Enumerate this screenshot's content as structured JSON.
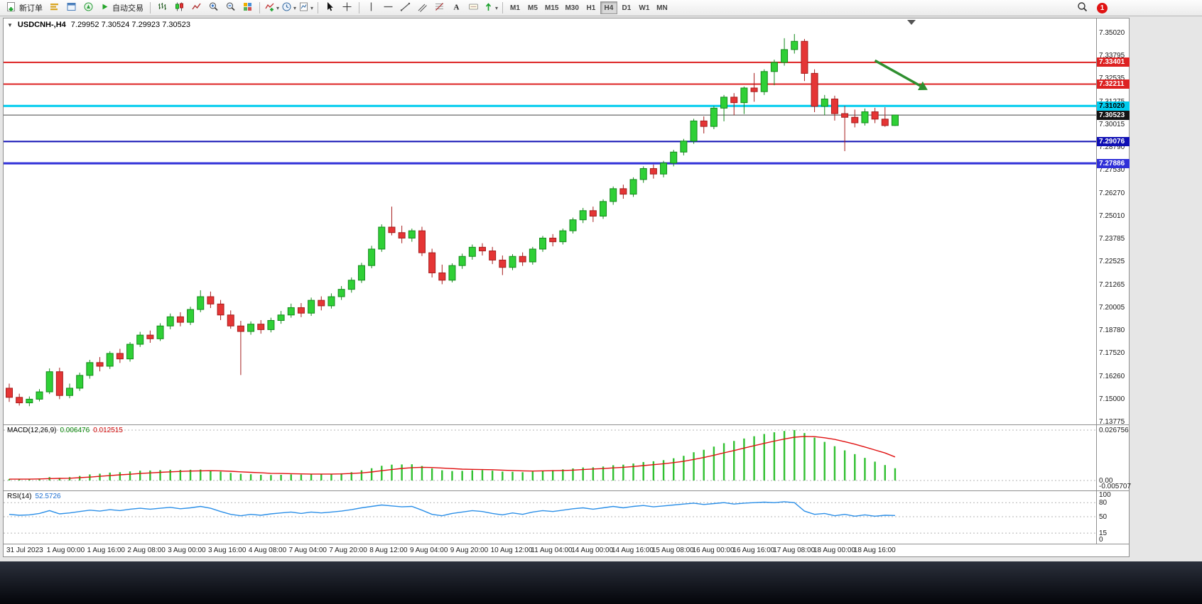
{
  "toolbar": {
    "new_order_label": "新订单",
    "autotrading_label": "自动交易",
    "timeframes": [
      "M1",
      "M5",
      "M15",
      "M30",
      "H1",
      "H4",
      "D1",
      "W1",
      "MN"
    ],
    "active_timeframe": "H4",
    "notification_count": "1",
    "icons": [
      "new-order",
      "market-watch",
      "data-window",
      "navigator",
      "autotrading",
      "bar-chart",
      "candlestick-chart",
      "line-chart",
      "zoom-in",
      "zoom-out",
      "tile-windows",
      "indicators",
      "period",
      "templates",
      "cursor",
      "crosshair",
      "vertical-line",
      "horizontal-line",
      "trendline",
      "channel",
      "fibonacci",
      "text",
      "text-label",
      "arrows",
      "search",
      "notification-badge"
    ]
  },
  "chart_header": {
    "collapse_icon": "▼",
    "symbol_period": "USDCNH-,H4",
    "ohlc": "7.29952 7.30524 7.29923 7.30523"
  },
  "chart_data": {
    "type": "candlestick",
    "symbol": "USDCNH",
    "timeframe": "H4",
    "price_scale": {
      "top": 7.358,
      "bottom": 7.1362
    },
    "price_axis_ticks": [
      "7.35020",
      "7.33795",
      "7.32535",
      "7.31275",
      "7.30015",
      "7.28790",
      "7.27530",
      "7.26270",
      "7.25010",
      "7.23785",
      "7.22525",
      "7.21265",
      "7.20005",
      "7.18780",
      "7.17520",
      "7.16260",
      "7.15000",
      "7.13775"
    ],
    "time_labels": [
      "31 Jul 2023",
      "1 Aug 00:00",
      "1 Aug 16:00",
      "2 Aug 08:00",
      "3 Aug 00:00",
      "3 Aug 16:00",
      "4 Aug 08:00",
      "7 Aug 04:00",
      "7 Aug 20:00",
      "8 Aug 12:00",
      "9 Aug 04:00",
      "9 Aug 20:00",
      "10 Aug 12:00",
      "11 Aug 04:00",
      "14 Aug 00:00",
      "14 Aug 16:00",
      "15 Aug 08:00",
      "16 Aug 00:00",
      "16 Aug 16:00",
      "17 Aug 08:00",
      "18 Aug 00:00",
      "18 Aug 16:00"
    ],
    "colors": {
      "bull": "#2fd036",
      "bull_border": "#148a1c",
      "bear": "#e53535",
      "bear_border": "#a51c1c"
    },
    "candles": [
      [
        7.156,
        7.1585,
        7.1485,
        7.151
      ],
      [
        7.151,
        7.153,
        7.1465,
        7.148
      ],
      [
        7.148,
        7.1515,
        7.1462,
        7.15
      ],
      [
        7.15,
        7.1555,
        7.1488,
        7.154
      ],
      [
        7.154,
        7.1668,
        7.1528,
        7.165
      ],
      [
        7.165,
        7.1672,
        7.15,
        7.152
      ],
      [
        7.152,
        7.1585,
        7.1505,
        7.156
      ],
      [
        7.156,
        7.1645,
        7.1545,
        7.163
      ],
      [
        7.163,
        7.1715,
        7.1612,
        7.17
      ],
      [
        7.17,
        7.173,
        7.1652,
        7.168
      ],
      [
        7.168,
        7.1762,
        7.1665,
        7.175
      ],
      [
        7.175,
        7.1775,
        7.1698,
        7.172
      ],
      [
        7.172,
        7.1812,
        7.1705,
        7.18
      ],
      [
        7.18,
        7.1868,
        7.1785,
        7.185
      ],
      [
        7.185,
        7.1875,
        7.1808,
        7.183
      ],
      [
        7.183,
        7.1915,
        7.1818,
        7.19
      ],
      [
        7.19,
        7.1968,
        7.1882,
        7.195
      ],
      [
        7.195,
        7.1975,
        7.1898,
        7.192
      ],
      [
        7.192,
        7.2005,
        7.1905,
        7.199
      ],
      [
        7.199,
        7.2095,
        7.1975,
        7.206
      ],
      [
        7.206,
        7.2088,
        7.1998,
        7.202
      ],
      [
        7.202,
        7.2042,
        7.1932,
        7.196
      ],
      [
        7.196,
        7.1985,
        7.1885,
        7.19
      ],
      [
        7.19,
        7.1928,
        7.1632,
        7.187
      ],
      [
        7.187,
        7.1925,
        7.1852,
        7.191
      ],
      [
        7.191,
        7.1932,
        7.1858,
        7.188
      ],
      [
        7.188,
        7.1945,
        7.1865,
        7.193
      ],
      [
        7.193,
        7.1982,
        7.1912,
        7.196
      ],
      [
        7.196,
        7.2022,
        7.1945,
        7.2
      ],
      [
        7.2,
        7.2025,
        7.1948,
        7.197
      ],
      [
        7.197,
        7.2055,
        7.1955,
        7.204
      ],
      [
        7.204,
        7.2062,
        7.1985,
        7.201
      ],
      [
        7.201,
        7.2078,
        7.1995,
        7.206
      ],
      [
        7.206,
        7.2118,
        7.2042,
        7.21
      ],
      [
        7.21,
        7.2165,
        7.2082,
        7.215
      ],
      [
        7.215,
        7.2245,
        7.2135,
        7.223
      ],
      [
        7.223,
        7.2338,
        7.2215,
        7.232
      ],
      [
        7.232,
        7.2455,
        7.2305,
        7.244
      ],
      [
        7.244,
        7.2552,
        7.2395,
        7.241
      ],
      [
        7.241,
        7.2448,
        7.2352,
        7.238
      ],
      [
        7.238,
        7.2432,
        7.236,
        7.242
      ],
      [
        7.242,
        7.2442,
        7.2282,
        7.23
      ],
      [
        7.23,
        7.2322,
        7.2165,
        7.219
      ],
      [
        7.219,
        7.2235,
        7.2128,
        7.215
      ],
      [
        7.215,
        7.2242,
        7.2138,
        7.223
      ],
      [
        7.223,
        7.2295,
        7.2212,
        7.228
      ],
      [
        7.228,
        7.2345,
        7.2262,
        7.233
      ],
      [
        7.233,
        7.2352,
        7.2285,
        7.231
      ],
      [
        7.231,
        7.2332,
        7.2238,
        7.226
      ],
      [
        7.226,
        7.2285,
        7.2178,
        7.222
      ],
      [
        7.222,
        7.2292,
        7.2205,
        7.228
      ],
      [
        7.228,
        7.2302,
        7.2228,
        7.225
      ],
      [
        7.225,
        7.2332,
        7.2235,
        7.232
      ],
      [
        7.232,
        7.2392,
        7.2305,
        7.238
      ],
      [
        7.238,
        7.2402,
        7.2335,
        7.236
      ],
      [
        7.236,
        7.2432,
        7.2345,
        7.242
      ],
      [
        7.242,
        7.2492,
        7.2405,
        7.248
      ],
      [
        7.248,
        7.2545,
        7.2462,
        7.253
      ],
      [
        7.253,
        7.2552,
        7.2468,
        7.25
      ],
      [
        7.25,
        7.2592,
        7.2485,
        7.258
      ],
      [
        7.258,
        7.2662,
        7.2562,
        7.265
      ],
      [
        7.265,
        7.2672,
        7.2595,
        7.262
      ],
      [
        7.262,
        7.2712,
        7.2605,
        7.27
      ],
      [
        7.27,
        7.2772,
        7.2682,
        7.276
      ],
      [
        7.276,
        7.2782,
        7.2705,
        7.273
      ],
      [
        7.273,
        7.2802,
        7.2712,
        7.279
      ],
      [
        7.279,
        7.2862,
        7.2772,
        7.285
      ],
      [
        7.285,
        7.2922,
        7.2832,
        7.291
      ],
      [
        7.291,
        7.3032,
        7.2895,
        7.302
      ],
      [
        7.302,
        7.3045,
        7.2952,
        7.299
      ],
      [
        7.299,
        7.3102,
        7.2975,
        7.309
      ],
      [
        7.309,
        7.3162,
        7.3018,
        7.315
      ],
      [
        7.315,
        7.3172,
        7.3052,
        7.312
      ],
      [
        7.312,
        7.3208,
        7.3058,
        7.32
      ],
      [
        7.32,
        7.3282,
        7.3125,
        7.318
      ],
      [
        7.318,
        7.3302,
        7.3162,
        7.329
      ],
      [
        7.329,
        7.3355,
        7.3215,
        7.334
      ],
      [
        7.334,
        7.3472,
        7.3322,
        7.341
      ],
      [
        7.341,
        7.3495,
        7.3388,
        7.3455
      ],
      [
        7.3455,
        7.3468,
        7.3238,
        7.328
      ],
      [
        7.328,
        7.3302,
        7.3068,
        7.31
      ],
      [
        7.31,
        7.3162,
        7.3052,
        7.314
      ],
      [
        7.314,
        7.3158,
        7.3022,
        7.306
      ],
      [
        7.306,
        7.3102,
        7.2855,
        7.304
      ],
      [
        7.304,
        7.3082,
        7.2985,
        7.301
      ],
      [
        7.301,
        7.3088,
        7.2995,
        7.307
      ],
      [
        7.307,
        7.3092,
        7.3008,
        7.303
      ],
      [
        7.303,
        7.3095,
        7.2988,
        7.2995
      ],
      [
        7.29952,
        7.30524,
        7.29923,
        7.30523
      ]
    ],
    "hlines": [
      {
        "price": 7.33401,
        "label": "7.33401",
        "color": "#dd2222",
        "width": 2,
        "tag_text": "#ffffff"
      },
      {
        "price": 7.32211,
        "label": "7.32211",
        "color": "#dd2222",
        "width": 2,
        "tag_text": "#ffffff"
      },
      {
        "price": 7.3102,
        "label": "7.31020",
        "color": "#00ccee",
        "width": 3,
        "tag_text": "#000000"
      },
      {
        "price": 7.29076,
        "label": "7.29076",
        "color": "#0f0fb4",
        "width": 2,
        "tag_text": "#ffffff"
      },
      {
        "price": 7.27886,
        "label": "7.27886",
        "color": "#3030d8",
        "width": 3,
        "tag_text": "#ffffff"
      }
    ],
    "current_price": {
      "value": 7.30523,
      "label": "7.30523",
      "line_color": "#444444",
      "tag_bg": "#141414",
      "tag_text": "#ffffff"
    },
    "arrow_annotation": {
      "from_bar": 86,
      "from_price": 7.335,
      "to_bar": 90.5,
      "to_price": 7.3212,
      "color": "#2f8f2f"
    },
    "macd": {
      "label": "MACD(12,26,9)",
      "value_main": "0.006476",
      "value_signal": "0.012515",
      "axis_labels": [
        {
          "text": "0.026756",
          "value": 0.026756
        },
        {
          "text": "0.00",
          "value": 0
        },
        {
          "text": "-0.005707",
          "value": -0.005707
        }
      ],
      "scale": {
        "max": 0.0294,
        "min": -0.0053
      },
      "hist_color": "#30c030",
      "signal_color": "#e01010",
      "histogram": [
        0.0008,
        0.0006,
        0.0007,
        0.001,
        0.0018,
        0.0014,
        0.0018,
        0.0024,
        0.0032,
        0.0036,
        0.0042,
        0.0044,
        0.0048,
        0.0052,
        0.0053,
        0.0055,
        0.0057,
        0.0056,
        0.0057,
        0.0058,
        0.0054,
        0.0047,
        0.004,
        0.0035,
        0.0033,
        0.003,
        0.0029,
        0.003,
        0.0032,
        0.0031,
        0.0033,
        0.0032,
        0.0034,
        0.0038,
        0.0044,
        0.0054,
        0.0065,
        0.0078,
        0.0084,
        0.0085,
        0.0086,
        0.0077,
        0.0064,
        0.0054,
        0.005,
        0.0051,
        0.0054,
        0.0055,
        0.0052,
        0.0047,
        0.0046,
        0.0044,
        0.0047,
        0.0052,
        0.0055,
        0.0059,
        0.0064,
        0.0069,
        0.007,
        0.0074,
        0.0081,
        0.0084,
        0.009,
        0.0098,
        0.0102,
        0.0108,
        0.0118,
        0.0131,
        0.015,
        0.0163,
        0.018,
        0.0198,
        0.021,
        0.0223,
        0.0235,
        0.0247,
        0.0256,
        0.0263,
        0.0268,
        0.0252,
        0.0228,
        0.0205,
        0.0182,
        0.016,
        0.014,
        0.012,
        0.01,
        0.0082,
        0.0065
      ],
      "signal": [
        0.0007,
        0.0007,
        0.0007,
        0.0008,
        0.001,
        0.0011,
        0.0012,
        0.0015,
        0.0018,
        0.0022,
        0.0026,
        0.003,
        0.0033,
        0.0037,
        0.004,
        0.0043,
        0.0046,
        0.0048,
        0.005,
        0.0051,
        0.0052,
        0.0051,
        0.0049,
        0.0046,
        0.0043,
        0.0041,
        0.0038,
        0.0037,
        0.0036,
        0.0035,
        0.0034,
        0.0034,
        0.0034,
        0.0035,
        0.0037,
        0.004,
        0.0045,
        0.0052,
        0.0058,
        0.0064,
        0.0068,
        0.007,
        0.0069,
        0.0066,
        0.0063,
        0.006,
        0.0059,
        0.0058,
        0.0057,
        0.0055,
        0.0053,
        0.0051,
        0.005,
        0.0051,
        0.0052,
        0.0053,
        0.0055,
        0.0058,
        0.0061,
        0.0063,
        0.0067,
        0.007,
        0.0074,
        0.0079,
        0.0084,
        0.0089,
        0.0095,
        0.0102,
        0.0112,
        0.0122,
        0.0134,
        0.0147,
        0.0159,
        0.0172,
        0.0185,
        0.0197,
        0.0209,
        0.022,
        0.023,
        0.0234,
        0.0233,
        0.0227,
        0.0218,
        0.0206,
        0.0193,
        0.0178,
        0.0162,
        0.0146,
        0.0125
      ]
    },
    "rsi": {
      "label": "RSI(14)",
      "value": "52.5726",
      "line_color": "#2b8fe8",
      "axis_labels": [
        {
          "text": "100",
          "value": 100
        },
        {
          "text": "80",
          "value": 80
        },
        {
          "text": "50",
          "value": 50
        },
        {
          "text": "15",
          "value": 15
        },
        {
          "text": "0",
          "value": 0
        }
      ],
      "levels": [
        80,
        50,
        15
      ],
      "values": [
        55,
        53,
        54,
        57,
        63,
        56,
        58,
        61,
        64,
        62,
        65,
        63,
        66,
        68,
        66,
        68,
        70,
        67,
        69,
        72,
        68,
        61,
        55,
        52,
        55,
        53,
        56,
        58,
        60,
        57,
        60,
        58,
        60,
        62,
        65,
        69,
        72,
        75,
        73,
        71,
        72,
        64,
        55,
        52,
        57,
        60,
        63,
        61,
        57,
        54,
        58,
        55,
        60,
        63,
        61,
        64,
        67,
        69,
        66,
        69,
        72,
        69,
        72,
        74,
        71,
        73,
        75,
        77,
        79,
        76,
        78,
        80,
        77,
        79,
        80,
        81,
        80,
        82,
        80,
        62,
        55,
        57,
        52,
        55,
        51,
        54,
        51,
        53,
        52.57
      ]
    }
  }
}
